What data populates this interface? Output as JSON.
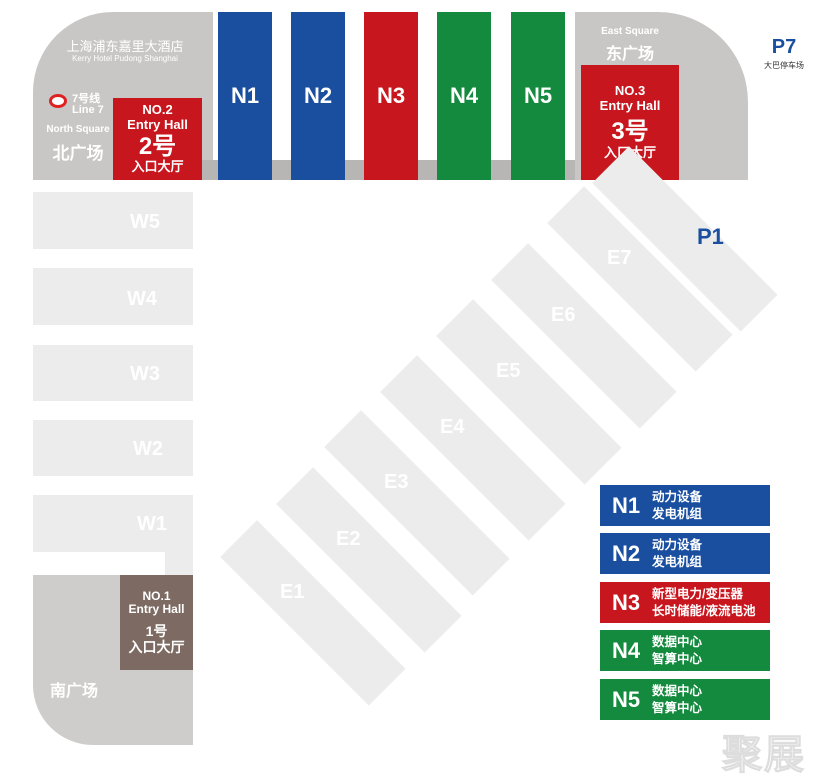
{
  "north": {
    "hotel_cn": "上海浦东嘉里大酒店",
    "hotel_en": "Kerry Hotel Pudong Shanghai",
    "metro_cn": "7号线",
    "metro_en": "Line 7",
    "square_en": "North Square",
    "square_cn": "北广场"
  },
  "entries": [
    {
      "no": "NO.1",
      "en": "Entry Hall",
      "num": "1号",
      "cn": "入口大厅"
    },
    {
      "no": "NO.2",
      "en": "Entry Hall",
      "num": "2号",
      "cn": "入口大厅"
    },
    {
      "no": "NO.3",
      "en": "Entry Hall",
      "num": "3号",
      "cn": "入口大厅"
    }
  ],
  "east": {
    "square_en": "East Square",
    "square_cn": "东广场"
  },
  "south": {
    "square_cn": "南广场"
  },
  "parking": {
    "p7": "P7",
    "p7_desc": "大巴停车场",
    "p1": "P1"
  },
  "north_halls": [
    "N1",
    "N2",
    "N3",
    "N4",
    "N5"
  ],
  "west_halls": [
    "W5",
    "W4",
    "W3",
    "W2",
    "W1"
  ],
  "east_halls": [
    "E1",
    "E2",
    "E3",
    "E4",
    "E5",
    "E6",
    "E7"
  ],
  "legend": [
    {
      "code": "N1",
      "line1": "动力设备",
      "line2": "发电机组",
      "color": "#1a4fa0"
    },
    {
      "code": "N2",
      "line1": "动力设备",
      "line2": "发电机组",
      "color": "#1a4fa0"
    },
    {
      "code": "N3",
      "line1": "新型电力/变压器",
      "line2": "长时储能/液流电池",
      "color": "#c8161e"
    },
    {
      "code": "N4",
      "line1": "数据中心",
      "line2": "智算中心",
      "color": "#138a3d"
    },
    {
      "code": "N5",
      "line1": "数据中心",
      "line2": "智算中心",
      "color": "#138a3d"
    }
  ],
  "colors": {
    "blue": "#1a4fa0",
    "red": "#c8161e",
    "green": "#138a3d",
    "brown": "#7d6b63",
    "gray": "#c9c7c6",
    "hall_gray": "#ececec"
  },
  "watermark": "聚展"
}
